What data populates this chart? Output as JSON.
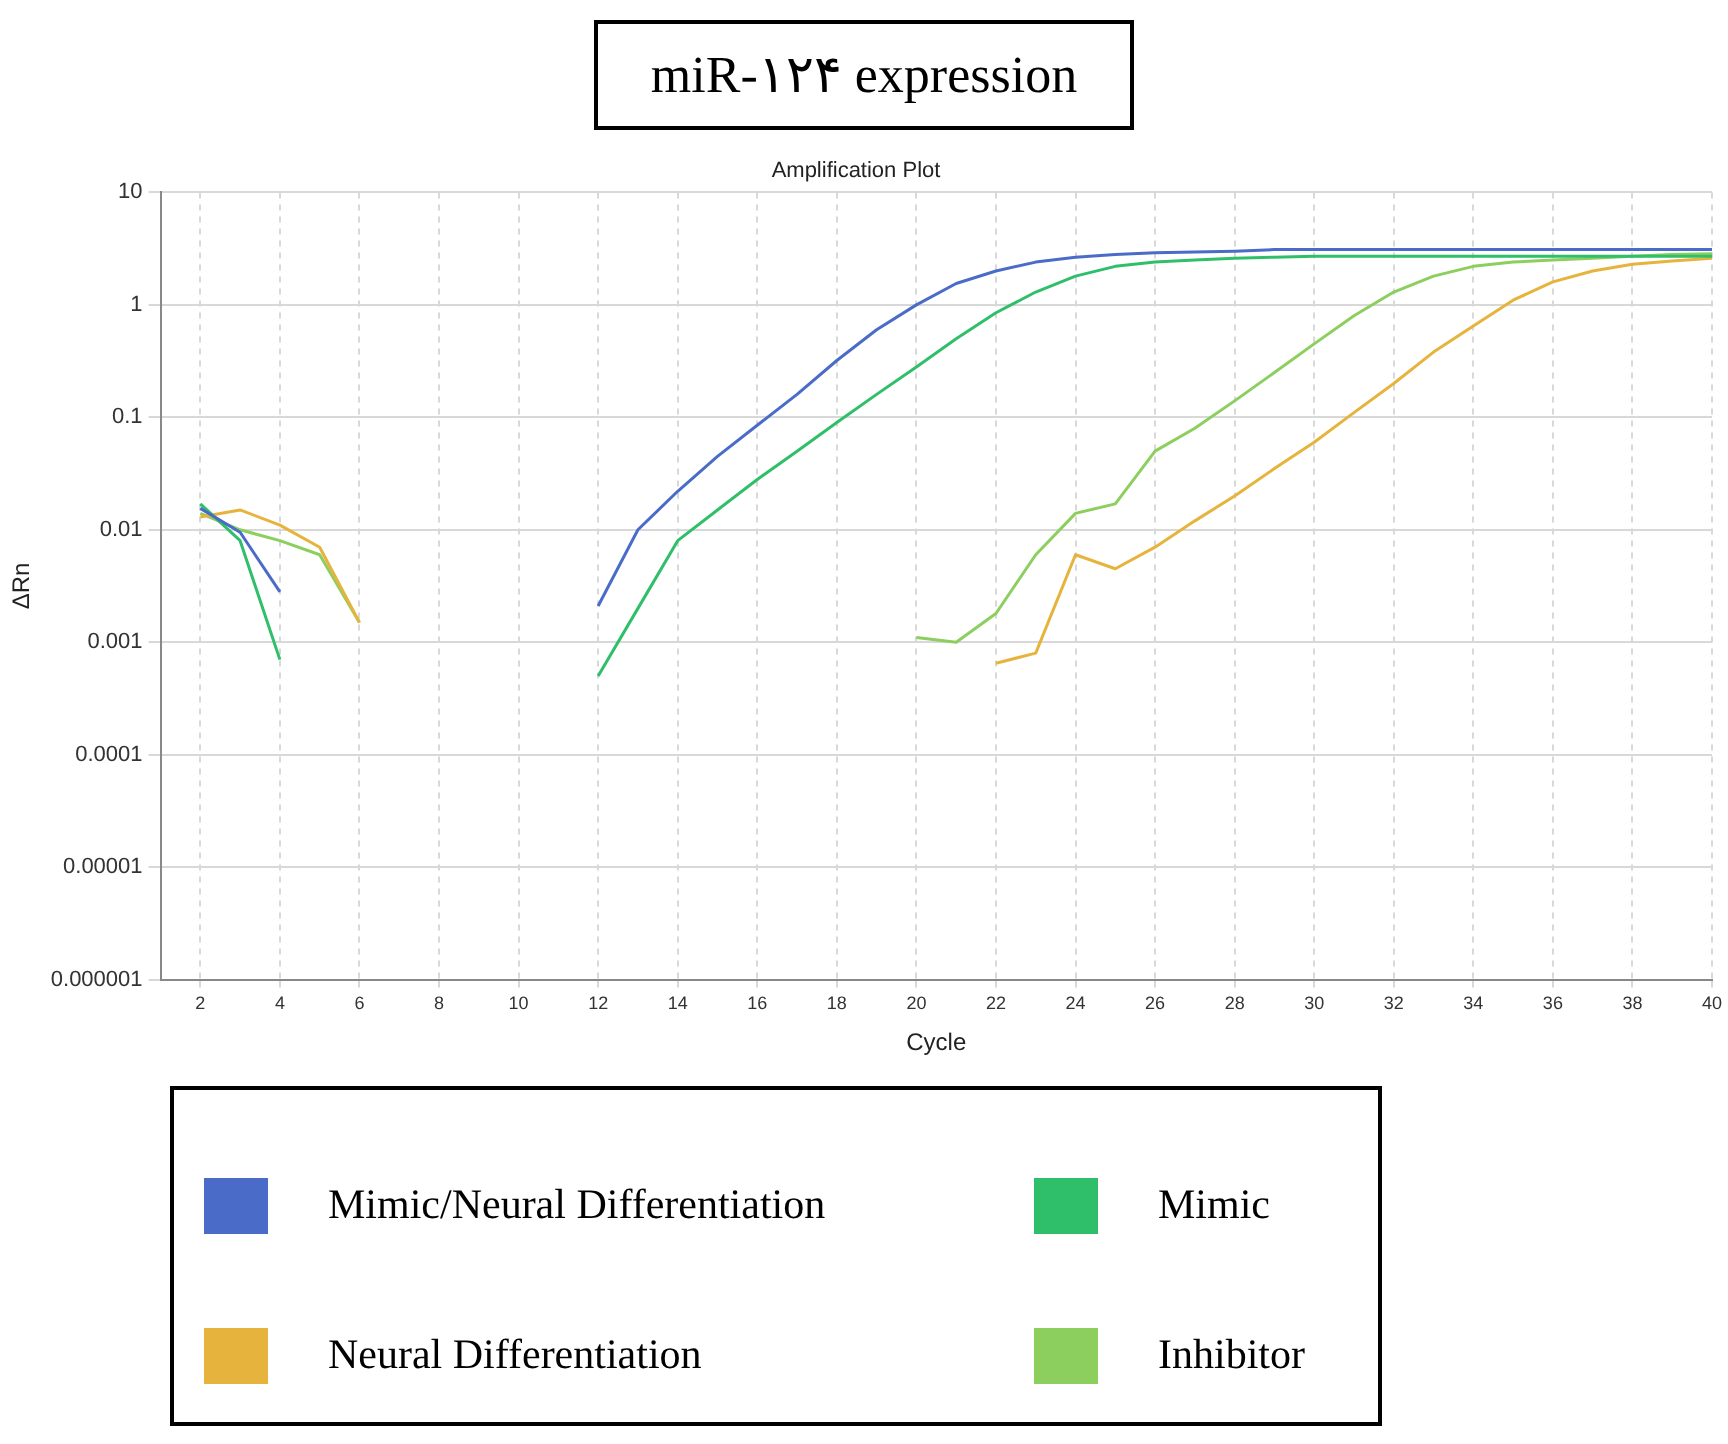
{
  "chart_data": {
    "type": "line",
    "title": "miR-۱۲۴ expression",
    "subtitle": "Amplification Plot",
    "xlabel": "Cycle",
    "ylabel": "ΔRn",
    "log": "y",
    "grid": true,
    "legend": "bottom",
    "marker": "none",
    "line_style": "solid",
    "x": [
      2,
      3,
      4,
      5,
      6,
      7,
      8,
      9,
      10,
      11,
      12,
      13,
      14,
      15,
      16,
      17,
      18,
      19,
      20,
      21,
      22,
      23,
      24,
      25,
      26,
      27,
      28,
      29,
      30,
      31,
      32,
      33,
      34,
      35,
      36,
      37,
      38,
      39,
      40
    ],
    "xlim": [
      1,
      40
    ],
    "xticks": [
      2,
      4,
      6,
      8,
      10,
      12,
      14,
      16,
      18,
      20,
      22,
      24,
      26,
      28,
      30,
      32,
      34,
      36,
      38,
      40
    ],
    "ylim": [
      1e-06,
      10
    ],
    "yticks": [
      {
        "value": 1e-06,
        "label": "0.000001"
      },
      {
        "value": 1e-05,
        "label": "0.00001"
      },
      0.0001,
      0.001,
      0.01,
      0.1,
      1,
      10
    ],
    "series": [
      {
        "name": "Mimic/Neural Differentiation",
        "color": "#4a6cc8",
        "values": [
          0.0155,
          0.0095,
          0.0028,
          null,
          null,
          null,
          null,
          null,
          null,
          null,
          0.0021,
          0.01,
          0.022,
          0.045,
          0.085,
          0.16,
          0.32,
          0.6,
          1.0,
          1.55,
          2.0,
          2.4,
          2.65,
          2.8,
          2.9,
          2.95,
          3.0,
          3.1,
          3.1,
          3.1,
          3.1,
          3.1,
          3.1,
          3.1,
          3.1,
          3.1,
          3.1,
          3.1,
          3.1
        ]
      },
      {
        "name": "Mimic",
        "color": "#2fbf6a",
        "values": [
          0.017,
          0.008,
          0.0007,
          null,
          null,
          null,
          null,
          null,
          null,
          null,
          0.0005,
          0.002,
          0.008,
          0.015,
          0.028,
          0.05,
          0.09,
          0.16,
          0.28,
          0.5,
          0.85,
          1.3,
          1.8,
          2.2,
          2.4,
          2.5,
          2.6,
          2.65,
          2.7,
          2.7,
          2.7,
          2.7,
          2.7,
          2.7,
          2.7,
          2.7,
          2.7,
          2.7,
          2.7
        ]
      },
      {
        "name": "Neural Differentiation",
        "color": "#e6b43c",
        "values": [
          0.013,
          0.015,
          0.011,
          0.007,
          0.0015,
          null,
          null,
          null,
          null,
          null,
          null,
          null,
          null,
          null,
          null,
          null,
          null,
          null,
          null,
          null,
          0.00065,
          0.0008,
          0.006,
          0.0045,
          0.007,
          0.012,
          0.02,
          0.035,
          0.06,
          0.11,
          0.2,
          0.38,
          0.65,
          1.1,
          1.6,
          2.0,
          2.3,
          2.45,
          2.6
        ]
      },
      {
        "name": "Inhibitor",
        "color": "#8ccf5e",
        "values": [
          0.014,
          0.01,
          0.008,
          0.006,
          0.0015,
          null,
          null,
          null,
          null,
          null,
          null,
          null,
          null,
          null,
          null,
          null,
          null,
          null,
          0.0011,
          0.001,
          0.0018,
          0.006,
          0.014,
          0.017,
          0.05,
          0.08,
          0.14,
          0.25,
          0.45,
          0.8,
          1.3,
          1.8,
          2.2,
          2.4,
          2.5,
          2.6,
          2.7,
          2.8,
          2.85
        ]
      }
    ]
  }
}
